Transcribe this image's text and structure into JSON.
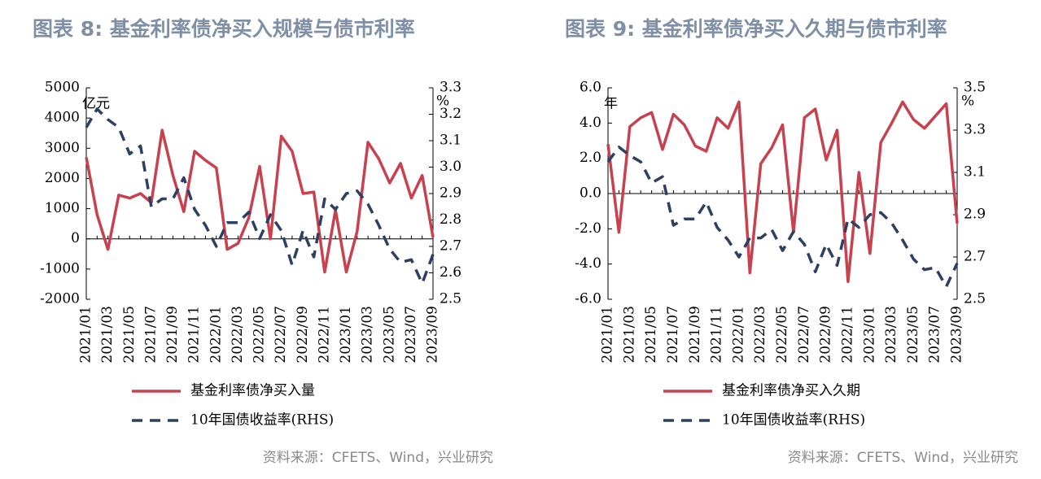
{
  "chart_data": [
    {
      "type": "line",
      "title": "图表 8:  基金利率债净买入规模与债市利率",
      "y_unit": "亿元",
      "y2_unit": "%",
      "categories": [
        "2021/01",
        null,
        "2021/03",
        null,
        "2021/05",
        null,
        "2021/07",
        null,
        "2021/09",
        null,
        "2021/11",
        null,
        "2022/01",
        null,
        "2022/03",
        null,
        "2022/05",
        null,
        "2022/07",
        null,
        "2022/09",
        null,
        "2022/11",
        null,
        "2023/01",
        null,
        "2023/03",
        null,
        "2023/05",
        null,
        "2023/07",
        null,
        "2023/09"
      ],
      "series": [
        {
          "name": "基金利率债净买入量",
          "color": "#c8414f",
          "dashed": false,
          "values": [
            2700,
            800,
            -350,
            1450,
            1350,
            1500,
            1200,
            3600,
            2100,
            900,
            2900,
            2600,
            2350,
            -350,
            -150,
            700,
            2400,
            0,
            3400,
            2900,
            1500,
            1550,
            -1100,
            950,
            -1100,
            250,
            3200,
            2650,
            1850,
            2500,
            1350,
            2100,
            50
          ]
        },
        {
          "name": "10年国债收益率(RHS)",
          "color": "#2e4061",
          "dashed": true,
          "axis": "y2",
          "values": [
            3.15,
            3.22,
            3.18,
            3.15,
            3.05,
            3.08,
            2.85,
            2.88,
            2.88,
            2.96,
            2.84,
            2.78,
            2.7,
            2.79,
            2.79,
            2.83,
            2.73,
            2.82,
            2.76,
            2.63,
            2.76,
            2.66,
            2.88,
            2.84,
            2.9,
            2.91,
            2.86,
            2.78,
            2.69,
            2.64,
            2.65,
            2.56,
            2.67
          ]
        }
      ],
      "ylim": [
        -2000,
        5000
      ],
      "yticks": [
        -2000,
        -1000,
        0,
        1000,
        2000,
        3000,
        4000,
        5000
      ],
      "y2lim": [
        2.5,
        3.3
      ],
      "y2ticks": [
        2.5,
        2.6,
        2.7,
        2.8,
        2.9,
        {
          "value": 3,
          "label": "3.0"
        },
        3.1,
        3.2,
        3.3
      ],
      "source": "资料来源：CFETS、Wind，兴业研究"
    },
    {
      "type": "line",
      "title": "图表 9:  基金利率债净买入久期与债市利率",
      "y_unit": "年",
      "y2_unit": "%",
      "categories": [
        "2021/01",
        null,
        "2021/03",
        null,
        "2021/05",
        null,
        "2021/07",
        null,
        "2021/09",
        null,
        "2021/11",
        null,
        "2022/01",
        null,
        "2022/03",
        null,
        "2022/05",
        null,
        "2022/07",
        null,
        "2022/09",
        null,
        "2022/11",
        null,
        "2023/01",
        null,
        "2023/03",
        null,
        "2023/05",
        null,
        "2023/07",
        null,
        "2023/09"
      ],
      "series": [
        {
          "name": "基金利率债净买入久期",
          "color": "#c8414f",
          "dashed": false,
          "values": [
            2.8,
            -2.2,
            3.8,
            4.3,
            4.6,
            2.5,
            4.5,
            3.9,
            2.7,
            2.4,
            4.3,
            3.7,
            5.2,
            -4.5,
            1.7,
            2.6,
            3.9,
            -2.2,
            4.3,
            4.8,
            1.9,
            3.6,
            -5.0,
            1.2,
            -3.4,
            2.9,
            4.0,
            5.2,
            4.2,
            3.7,
            4.4,
            5.1,
            -1.7
          ]
        },
        {
          "name": "10年国债收益率(RHS)",
          "color": "#2e4061",
          "dashed": true,
          "axis": "y2",
          "values": [
            3.15,
            3.22,
            3.18,
            3.15,
            3.05,
            3.08,
            2.85,
            2.88,
            2.88,
            2.96,
            2.84,
            2.78,
            2.7,
            2.79,
            2.79,
            2.83,
            2.73,
            2.82,
            2.76,
            2.63,
            2.76,
            2.66,
            2.88,
            2.84,
            2.9,
            2.91,
            2.86,
            2.78,
            2.69,
            2.64,
            2.65,
            2.56,
            2.67
          ]
        }
      ],
      "ylim": [
        -6,
        6
      ],
      "yticks": [
        {
          "value": -6,
          "label": "-6.0"
        },
        {
          "value": -4,
          "label": "-4.0"
        },
        {
          "value": -2,
          "label": "-2.0"
        },
        {
          "value": 0,
          "label": "0.0"
        },
        {
          "value": 2,
          "label": "2.0"
        },
        {
          "value": 4,
          "label": "4.0"
        },
        {
          "value": 6,
          "label": "6.0"
        }
      ],
      "y2lim": [
        2.5,
        3.5
      ],
      "y2ticks": [
        2.5,
        2.7,
        2.9,
        3.1,
        3.3,
        3.5
      ],
      "source": "资料来源：CFETS、Wind，兴业研究"
    }
  ]
}
